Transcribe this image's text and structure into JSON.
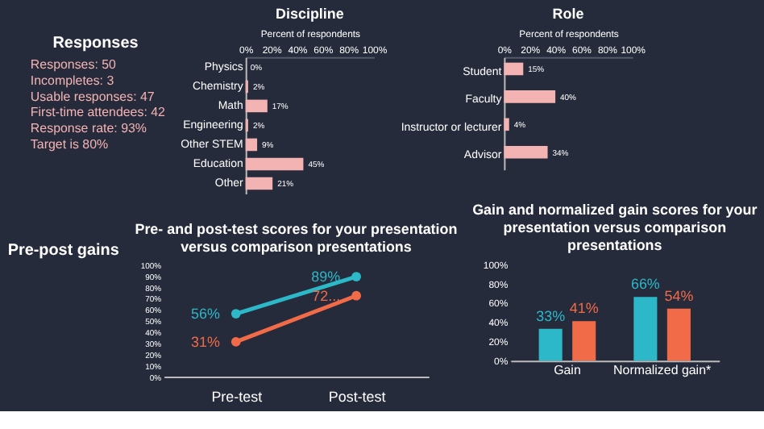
{
  "chart_data": [
    {
      "type": "other",
      "title": "Responses",
      "annotations": [
        "Responses: 50",
        "Incompletes: 3",
        "Usable responses: 47",
        "First-time attendees: 42",
        "Response rate: 93%",
        "Target is 80%"
      ]
    },
    {
      "type": "bar",
      "orientation": "horizontal",
      "title": "Discipline",
      "xlabel": "Percent of respondents",
      "categories": [
        "Physics",
        "Chemistry",
        "Math",
        "Engineering",
        "Other STEM",
        "Education",
        "Other"
      ],
      "values": [
        0,
        2,
        17,
        2,
        9,
        45,
        21
      ],
      "value_labels": [
        "0%",
        "2%",
        "17%",
        "2%",
        "9%",
        "45%",
        "21%"
      ],
      "color": "#f4b3b3",
      "xlim": [
        0,
        100
      ],
      "xticks": [
        {
          "value": 0,
          "label": "0%"
        },
        {
          "value": 20,
          "label": "20%"
        },
        {
          "value": 40,
          "label": "40%"
        },
        {
          "value": 60,
          "label": "60%"
        },
        {
          "value": 80,
          "label": "80%"
        },
        {
          "value": 100,
          "label": "100%"
        }
      ]
    },
    {
      "type": "bar",
      "orientation": "horizontal",
      "title": "Role",
      "xlabel": "Percent of respondents",
      "categories": [
        "Student",
        "Faculty",
        "Instructor or lecturer",
        "Advisor"
      ],
      "values": [
        15,
        40,
        4,
        34
      ],
      "value_labels": [
        "15%",
        "40%",
        "4%",
        "34%"
      ],
      "color": "#f4b3b3",
      "xlim": [
        0,
        100
      ],
      "xticks": [
        {
          "value": 0,
          "label": "0%"
        },
        {
          "value": 20,
          "label": "20%"
        },
        {
          "value": 40,
          "label": "40%"
        },
        {
          "value": 60,
          "label": "60%"
        },
        {
          "value": 80,
          "label": "80%"
        },
        {
          "value": 100,
          "label": "100%"
        }
      ]
    },
    {
      "type": "other",
      "title": "Pre-post gains"
    },
    {
      "type": "line",
      "title": "Pre- and post-test scores for your presentation versus comparison presentations",
      "categories": [
        "Pre-test",
        "Post-test"
      ],
      "marker": "circle",
      "ylim": [
        0,
        100
      ],
      "yticks": [
        {
          "value": 0,
          "label": "0%"
        },
        {
          "value": 10,
          "label": "10%"
        },
        {
          "value": 20,
          "label": "20%"
        },
        {
          "value": 30,
          "label": "30%"
        },
        {
          "value": 40,
          "label": "40%"
        },
        {
          "value": 50,
          "label": "50%"
        },
        {
          "value": 60,
          "label": "60%"
        },
        {
          "value": 70,
          "label": "70%"
        },
        {
          "value": 80,
          "label": "80%"
        },
        {
          "value": 90,
          "label": "90%"
        },
        {
          "value": 100,
          "label": "100%"
        }
      ],
      "series": [
        {
          "color": "#2cb8c8",
          "values": [
            56,
            89
          ],
          "value_labels": [
            "56%",
            "89%"
          ]
        },
        {
          "color": "#f26b48",
          "values": [
            31,
            72
          ],
          "value_labels": [
            "31%",
            "72..."
          ]
        }
      ]
    },
    {
      "type": "bar",
      "title": "Gain and normalized gain scores for your presentation versus comparison presentations",
      "categories": [
        "Gain",
        "Normalized gain*"
      ],
      "ylim": [
        0,
        100
      ],
      "yticks": [
        {
          "value": 0,
          "label": "0%"
        },
        {
          "value": 20,
          "label": "20%"
        },
        {
          "value": 40,
          "label": "40%"
        },
        {
          "value": 60,
          "label": "60%"
        },
        {
          "value": 80,
          "label": "80%"
        },
        {
          "value": 100,
          "label": "100%"
        }
      ],
      "series": [
        {
          "color": "#2cb8c8",
          "values": [
            33,
            66
          ],
          "value_labels": [
            "33%",
            "66%"
          ]
        },
        {
          "color": "#f26b48",
          "values": [
            41,
            54
          ],
          "value_labels": [
            "41%",
            "54%"
          ]
        }
      ]
    }
  ]
}
